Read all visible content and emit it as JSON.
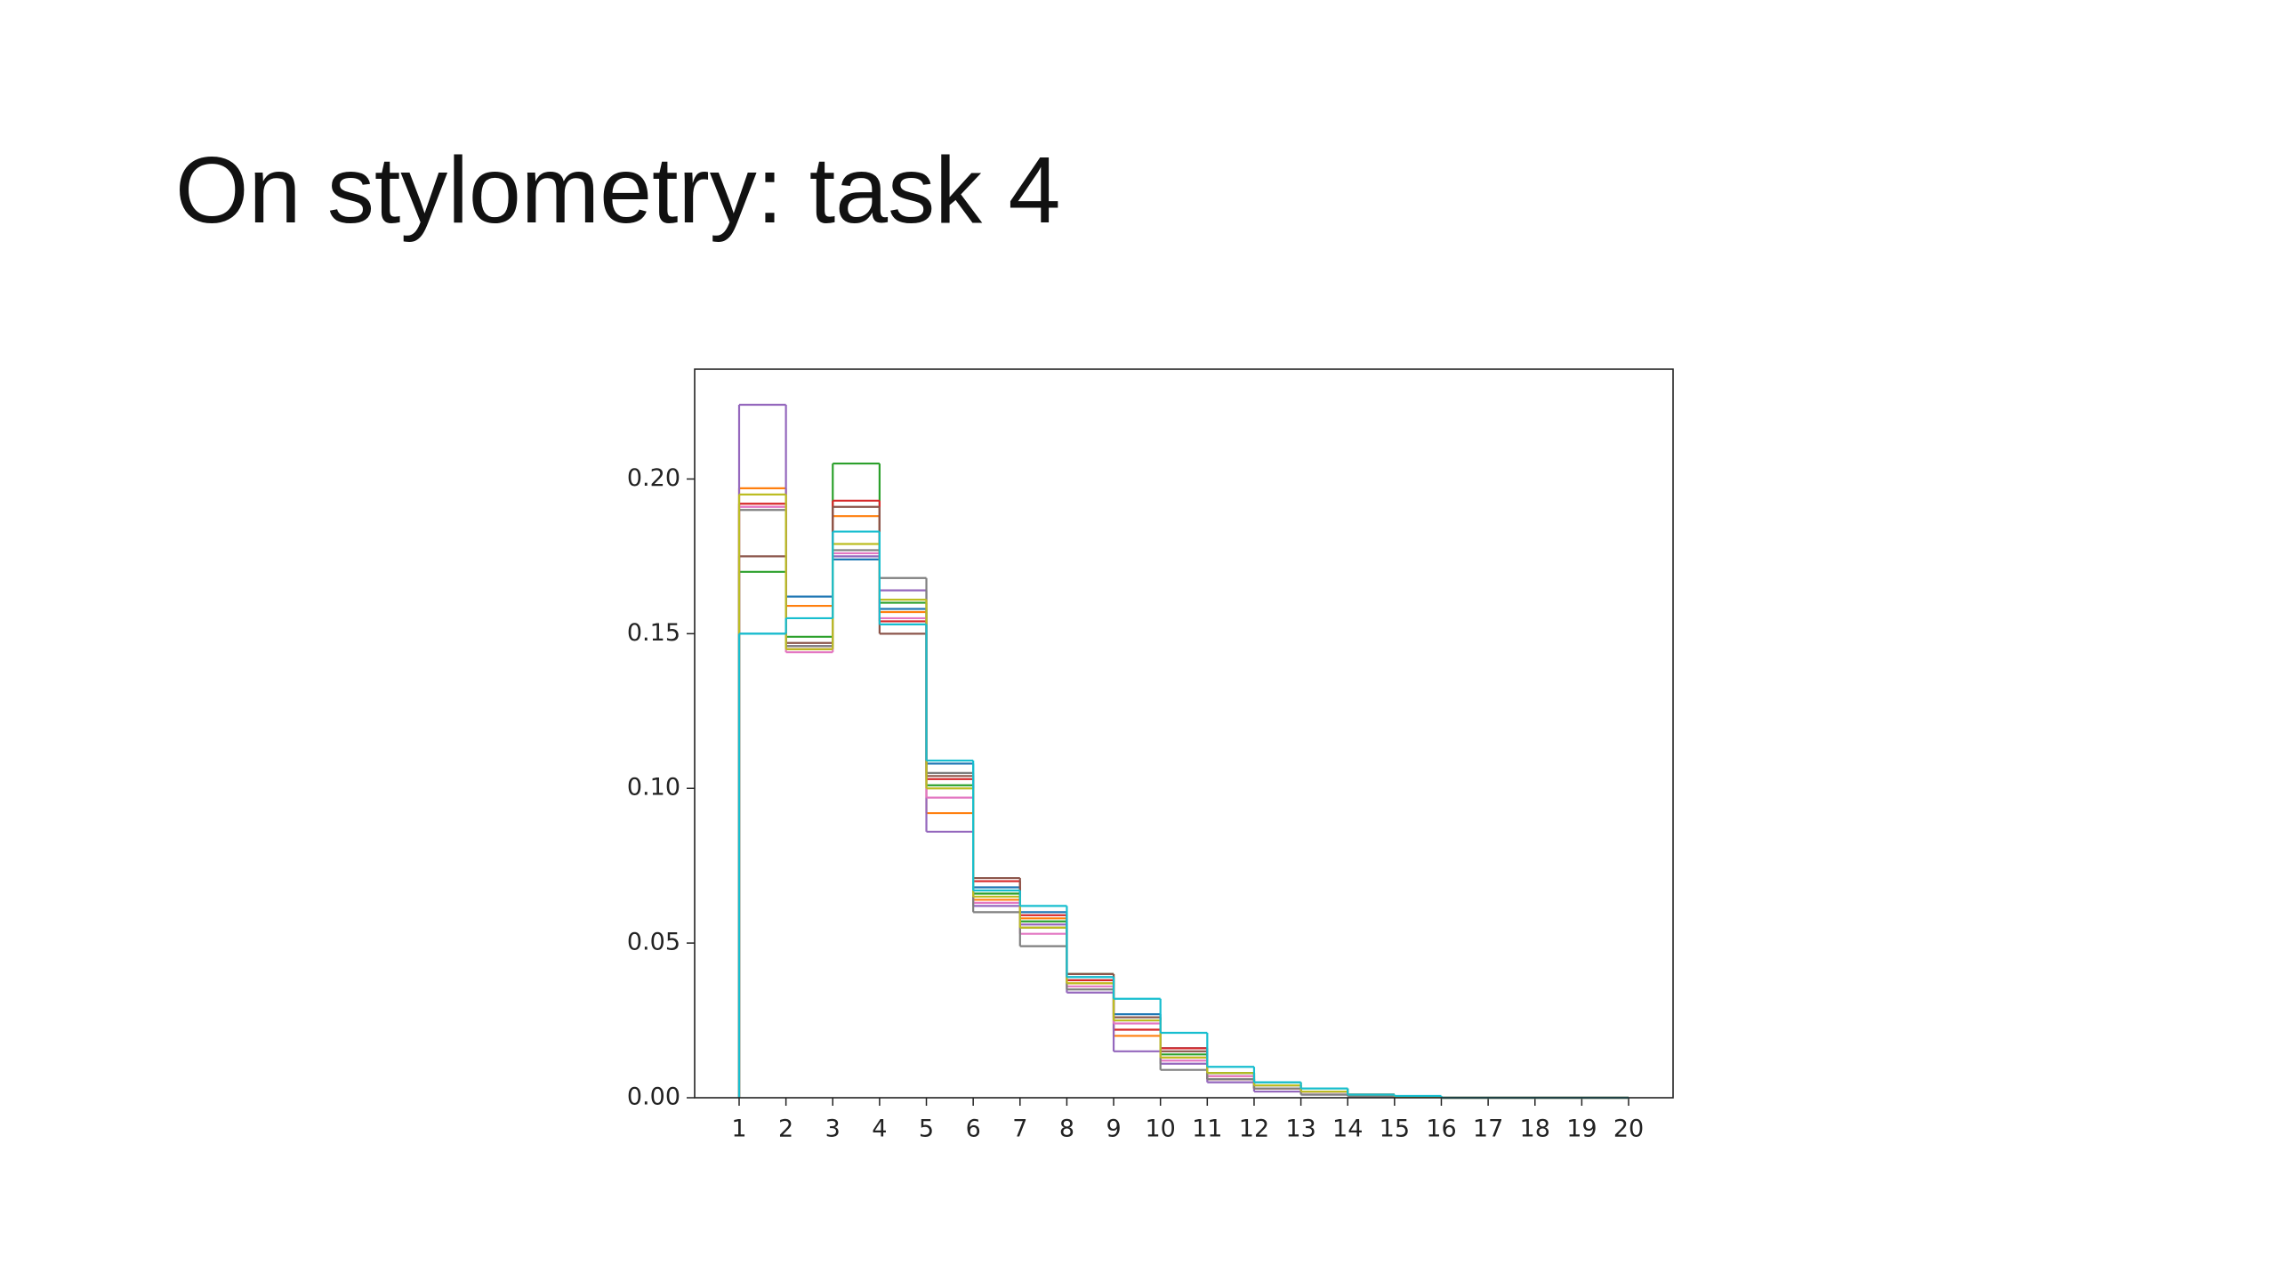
{
  "title": "On stylometry: task 4",
  "chart_data": {
    "type": "histogram",
    "bins": [
      1,
      2,
      3,
      4,
      5,
      6,
      7,
      8,
      9,
      10,
      11,
      12,
      13,
      14,
      15,
      16,
      17,
      18,
      19,
      20
    ],
    "series": [
      {
        "color": "#1f77b4",
        "values": [
          0.15,
          0.162,
          0.174,
          0.158,
          0.108,
          0.068,
          0.06,
          0.039,
          0.027,
          0.016,
          0.008,
          0.004,
          0.002,
          0.001,
          0.0005,
          0,
          0,
          0,
          0
        ]
      },
      {
        "color": "#ff7f0e",
        "values": [
          0.197,
          0.159,
          0.188,
          0.157,
          0.092,
          0.064,
          0.058,
          0.037,
          0.02,
          0.013,
          0.007,
          0.003,
          0.002,
          0.001,
          0.0004,
          0,
          0,
          0,
          0
        ]
      },
      {
        "color": "#2ca02c",
        "values": [
          0.17,
          0.149,
          0.205,
          0.16,
          0.101,
          0.066,
          0.057,
          0.04,
          0.026,
          0.014,
          0.008,
          0.005,
          0.003,
          0.001,
          0.0005,
          0,
          0,
          0,
          0
        ]
      },
      {
        "color": "#d62728",
        "values": [
          0.192,
          0.145,
          0.193,
          0.154,
          0.103,
          0.07,
          0.059,
          0.038,
          0.022,
          0.016,
          0.006,
          0.003,
          0.002,
          0.001,
          0.0003,
          0,
          0,
          0,
          0
        ]
      },
      {
        "color": "#9467bd",
        "values": [
          0.224,
          0.146,
          0.175,
          0.164,
          0.086,
          0.062,
          0.056,
          0.034,
          0.015,
          0.011,
          0.005,
          0.002,
          0.001,
          0.0005,
          0.0002,
          0,
          0,
          0,
          0
        ]
      },
      {
        "color": "#8c564b",
        "values": [
          0.175,
          0.147,
          0.191,
          0.15,
          0.104,
          0.071,
          0.055,
          0.04,
          0.026,
          0.015,
          0.006,
          0.003,
          0.002,
          0.001,
          0.0003,
          0,
          0,
          0,
          0
        ]
      },
      {
        "color": "#e377c2",
        "values": [
          0.191,
          0.144,
          0.176,
          0.155,
          0.097,
          0.063,
          0.053,
          0.036,
          0.024,
          0.012,
          0.007,
          0.004,
          0.002,
          0.001,
          0.0004,
          0,
          0,
          0,
          0
        ]
      },
      {
        "color": "#7f7f7f",
        "values": [
          0.19,
          0.146,
          0.177,
          0.168,
          0.105,
          0.06,
          0.049,
          0.035,
          0.025,
          0.009,
          0.006,
          0.003,
          0.001,
          0.0005,
          0.0002,
          0,
          0,
          0,
          0
        ]
      },
      {
        "color": "#bcbd22",
        "values": [
          0.195,
          0.145,
          0.179,
          0.161,
          0.1,
          0.065,
          0.055,
          0.037,
          0.025,
          0.013,
          0.008,
          0.004,
          0.002,
          0.001,
          0.0004,
          0,
          0,
          0,
          0
        ]
      },
      {
        "color": "#17becf",
        "values": [
          0.15,
          0.155,
          0.183,
          0.153,
          0.109,
          0.067,
          0.062,
          0.039,
          0.032,
          0.021,
          0.01,
          0.005,
          0.003,
          0.001,
          0.0006,
          0,
          0,
          0,
          0
        ]
      }
    ],
    "xlim": [
      0.05,
      20.95
    ],
    "ylim": [
      0,
      0.2355
    ],
    "xticks": [
      1,
      2,
      3,
      4,
      5,
      6,
      7,
      8,
      9,
      10,
      11,
      12,
      13,
      14,
      15,
      16,
      17,
      18,
      19,
      20
    ],
    "yticks": [
      {
        "value": 0,
        "label": "0.00"
      },
      0.05,
      {
        "value": 0.1,
        "label": "0.10"
      },
      0.15,
      {
        "value": 0.2,
        "label": "0.20"
      }
    ]
  }
}
